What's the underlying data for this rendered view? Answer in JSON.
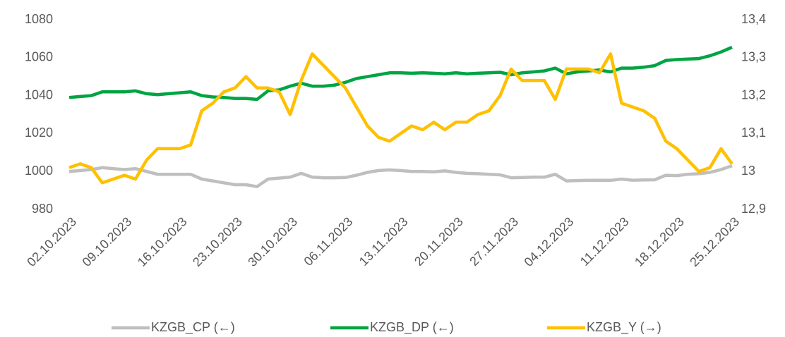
{
  "chart_data": {
    "type": "line",
    "categories": [
      "02.10.2023",
      null,
      null,
      null,
      null,
      "09.10.2023",
      null,
      null,
      null,
      null,
      "16.10.2023",
      null,
      null,
      null,
      null,
      "23.10.2023",
      null,
      null,
      null,
      null,
      "30.10.2023",
      null,
      null,
      null,
      null,
      "06.11.2023",
      null,
      null,
      null,
      null,
      "13.11.2023",
      null,
      null,
      null,
      null,
      "20.11.2023",
      null,
      null,
      null,
      null,
      "27.11.2023",
      null,
      null,
      null,
      null,
      "04.12.2023",
      null,
      null,
      null,
      null,
      "11.12.2023",
      null,
      null,
      null,
      null,
      "18.12.2023",
      null,
      null,
      null,
      null,
      "25.12.2023"
    ],
    "series": [
      {
        "name": "KZGB_CP (←)",
        "color": "#bfbfbf",
        "values": [
          1000,
          1000.5,
          1001,
          1002,
          1001.5,
          1001,
          1001.5,
          1000,
          998.5,
          998.5,
          998.5,
          998.5,
          996,
          995,
          994,
          993,
          993,
          992,
          996,
          996.5,
          997,
          999,
          997,
          996.7,
          996.7,
          996.8,
          998,
          999.5,
          1000.5,
          1000.8,
          1000.5,
          1000,
          1000,
          999.8,
          1000.3,
          999.5,
          999,
          998.8,
          998.5,
          998.2,
          996.7,
          996.8,
          997,
          997,
          998.5,
          995,
          995.2,
          995.3,
          995.3,
          995.3,
          996,
          995.4,
          995.5,
          995.6,
          998,
          997.8,
          998.5,
          998.8,
          999.5,
          1001,
          1003
        ]
      },
      {
        "name": "KZGB_DP (←)",
        "color": "#00a443",
        "values": [
          1039,
          1039.5,
          1040,
          1042,
          1042,
          1042,
          1042.5,
          1041,
          1040.5,
          1041,
          1041.5,
          1042,
          1040,
          1039.3,
          1039,
          1038.5,
          1038.5,
          1038,
          1042.5,
          1043,
          1045,
          1046.5,
          1045,
          1045,
          1045.5,
          1047,
          1049,
          1050,
          1051,
          1052,
          1052,
          1051.8,
          1052,
          1051.8,
          1051.5,
          1052,
          1051.5,
          1051.8,
          1052,
          1052.3,
          1051,
          1052,
          1052.5,
          1053,
          1054.5,
          1051.5,
          1052.5,
          1053,
          1053.5,
          1052.5,
          1054.5,
          1054.5,
          1055,
          1055.8,
          1058.5,
          1059,
          1059.3,
          1059.5,
          1061,
          1063,
          1065.5
        ]
      },
      {
        "name": "KZGB_Y (→)",
        "color": "#ffc000",
        "axis": "y2",
        "values": [
          13.01,
          13.02,
          13.01,
          12.97,
          12.98,
          12.99,
          12.98,
          13.03,
          13.06,
          13.06,
          13.06,
          13.07,
          13.16,
          13.18,
          13.21,
          13.22,
          13.25,
          13.22,
          13.22,
          13.21,
          13.15,
          13.24,
          13.31,
          13.28,
          13.25,
          13.22,
          13.17,
          13.12,
          13.09,
          13.08,
          13.1,
          13.12,
          13.11,
          13.13,
          13.11,
          13.13,
          13.13,
          13.15,
          13.16,
          13.2,
          13.27,
          13.24,
          13.24,
          13.24,
          13.19,
          13.27,
          13.27,
          13.27,
          13.26,
          13.31,
          13.18,
          13.17,
          13.16,
          13.14,
          13.08,
          13.06,
          13.03,
          13.0,
          13.01,
          13.06,
          13.02
        ]
      }
    ],
    "ylim": [
      980,
      1080
    ],
    "yticks": [
      980,
      1000,
      1020,
      1040,
      1060,
      1080
    ],
    "y2lim": [
      12.9,
      13.4
    ],
    "y2ticks": [
      {
        "value": 12.9,
        "label": "12,9"
      },
      13,
      {
        "value": 13.1,
        "label": "13,1"
      },
      {
        "value": 13.2,
        "label": "13,2"
      },
      {
        "value": 13.3,
        "label": "13,3"
      },
      {
        "value": 13.4,
        "label": "13,4"
      }
    ],
    "legend": "bottom"
  }
}
